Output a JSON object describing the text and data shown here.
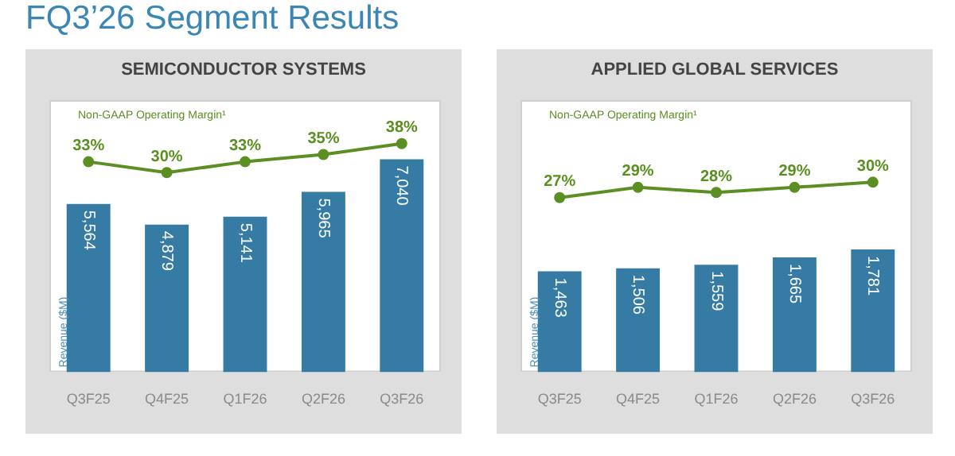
{
  "chart_data": [
    {
      "type": "bar",
      "title": "FQ3’26 Segment Results",
      "subtitle": "SEMICONDUCTOR SYSTEMS",
      "ylabel": "Revenue ($M)",
      "categories": [
        "Q3F25",
        "Q4F25",
        "Q1F26",
        "Q2F26",
        "Q3F26"
      ],
      "series": [
        {
          "color": "#357ba3",
          "values": [
            5564,
            4879,
            5141,
            5965,
            7040
          ],
          "value_labels": [
            "5,564",
            "4,879",
            "5,141",
            "5,965",
            "7,040"
          ]
        },
        {
          "type": "line",
          "name": "Non-GAAP Operating Margin¹",
          "color": "#5b8f22",
          "axis": "y2",
          "values": [
            33,
            30,
            33,
            35,
            38
          ],
          "value_labels": [
            "33%",
            "30%",
            "33%",
            "35%",
            "38%"
          ]
        }
      ],
      "ylim": [
        0,
        9000
      ],
      "y2lim": [
        -25,
        50
      ],
      "tick_labels": "x",
      "grid": false,
      "legend": false,
      "marker": "circle",
      "line_style": "solid"
    },
    {
      "type": "bar",
      "subtitle": "APPLIED GLOBAL SERVICES",
      "ylabel": "Revenue ($M)",
      "categories": [
        "Q3F25",
        "Q4F25",
        "Q1F26",
        "Q2F26",
        "Q3F26"
      ],
      "series": [
        {
          "color": "#357ba3",
          "values": [
            1463,
            1506,
            1559,
            1665,
            1781
          ],
          "value_labels": [
            "1,463",
            "1,506",
            "1,559",
            "1,665",
            "1,781"
          ]
        },
        {
          "type": "line",
          "name": "Non-GAAP Operating Margin¹",
          "color": "#5b8f22",
          "axis": "y2",
          "values": [
            27,
            29,
            28,
            29,
            30
          ],
          "value_labels": [
            "27%",
            "29%",
            "28%",
            "29%",
            "30%"
          ]
        }
      ],
      "ylim": [
        0,
        3950
      ],
      "y2lim": [
        -7,
        46
      ],
      "tick_labels": "x",
      "grid": false,
      "legend": false,
      "marker": "circle",
      "line_style": "solid"
    }
  ]
}
